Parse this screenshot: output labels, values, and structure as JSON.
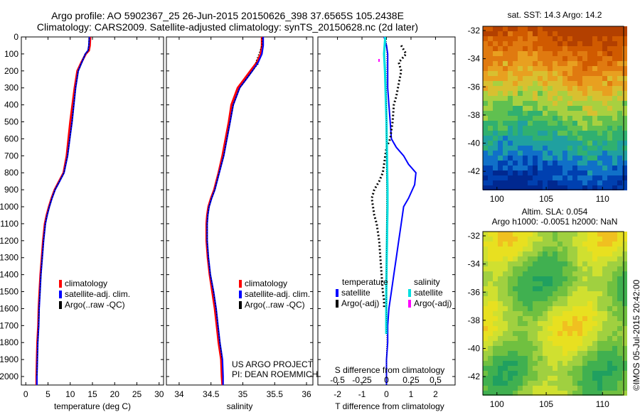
{
  "title": {
    "line1": "Argo profile: AO 5902367_25 26-Jun-2015 20150626_398 37.6565S 105.2438E",
    "line2": "Climatology: CARS2009. Satellite-adjusted climatology: synTS_20150628.nc (2d later)"
  },
  "colors": {
    "climatology": "#ff0000",
    "satellite": "#0000ff",
    "argo": "#000000",
    "sal_satellite": "#00e0e0",
    "sal_argo": "#ff00ff"
  },
  "panels": {
    "temperature": {
      "xlabel": "temperature (deg C)",
      "xticks": [
        "0",
        "5",
        "10",
        "15",
        "20",
        "25",
        "30"
      ],
      "legend": [
        "climatology",
        "satellite-adj. clim.",
        "Argo(..raw -QC)"
      ]
    },
    "salinity": {
      "xlabel": "salinity",
      "xticks": [
        "34",
        "34.5",
        "35",
        "35.5",
        "36"
      ],
      "legend": [
        "climatology",
        "satellite-adj. clim.",
        "Argo(..raw -QC)"
      ],
      "note1": "US ARGO PROJECT",
      "note2": "PI: DEAN ROEMMICH"
    },
    "difference": {
      "xlabel": "T difference from climatology",
      "xticks": [
        "-2",
        "-1",
        "0",
        "1",
        "2"
      ],
      "top_label": "S difference from climatology",
      "top_ticks": [
        "-0.5",
        "-0.25",
        "0",
        "0.25",
        "0.5"
      ],
      "legend_t_head": "temperature",
      "legend_s_head": "salinity",
      "legend_t": [
        "satellite",
        "Argo(-adj)"
      ],
      "legend_s": [
        "satellite",
        "Argo(-adj)"
      ]
    }
  },
  "yticks": [
    "0",
    "100",
    "200",
    "300",
    "400",
    "500",
    "600",
    "700",
    "800",
    "900",
    "1000",
    "1100",
    "1200",
    "1300",
    "1400",
    "1500",
    "1600",
    "1700",
    "1800",
    "1900",
    "2000"
  ],
  "maps": {
    "sst_title": "sat. SST: 14.3  Argo: 14.2",
    "sla_title1": "Altim. SLA: 0.054",
    "sla_title2": "Argo h1000: -0.0051  h2000: NaN",
    "lat_ticks": [
      "-32",
      "-34",
      "-36",
      "-38",
      "-40",
      "-42"
    ],
    "lon_ticks": [
      "100",
      "105",
      "110"
    ]
  },
  "stamp": "©IMOS 05-Jul-2015 20:42:00",
  "chart_data": [
    {
      "type": "line",
      "xlabel": "temperature (deg C)",
      "xlim": [
        -1,
        31
      ],
      "ylim": [
        2050,
        0
      ],
      "series": [
        {
          "name": "climatology",
          "x": [
            14.5,
            14.4,
            14.2,
            13.5,
            12.5,
            11.6,
            11.0,
            10.5,
            10.0,
            9.6,
            9.2,
            8.5,
            7.5,
            6.5,
            5.8,
            5.2,
            4.7,
            4.3,
            3.9,
            3.6,
            3.3,
            3.1,
            2.9,
            2.8,
            2.6,
            2.5,
            2.4,
            2.4
          ],
          "depth": [
            0,
            50,
            80,
            100,
            150,
            200,
            300,
            400,
            500,
            600,
            700,
            800,
            850,
            900,
            950,
            1000,
            1050,
            1100,
            1200,
            1300,
            1400,
            1500,
            1600,
            1700,
            1800,
            1900,
            2000,
            2050
          ]
        },
        {
          "name": "satellite-adj. clim.",
          "x": [
            14.3,
            14.2,
            14.0,
            13.4,
            12.6,
            11.8,
            11.2,
            10.8,
            10.4,
            9.9,
            9.4,
            8.6,
            7.6,
            6.6,
            5.9,
            5.3,
            4.8,
            4.4,
            4.0,
            3.7,
            3.4,
            3.2,
            3.0,
            2.9,
            2.7,
            2.6,
            2.5,
            2.5
          ],
          "depth": [
            0,
            50,
            80,
            100,
            150,
            200,
            300,
            400,
            500,
            600,
            700,
            800,
            850,
            900,
            950,
            1000,
            1050,
            1100,
            1200,
            1300,
            1400,
            1500,
            1600,
            1700,
            1800,
            1900,
            2000,
            2050
          ]
        },
        {
          "name": "Argo(..raw -QC)",
          "x": [
            14.2,
            14.2,
            14.1,
            13.4,
            12.6,
            11.8,
            11.2,
            10.8,
            10.4,
            9.9,
            9.4,
            8.6,
            7.6,
            6.6,
            5.9,
            5.3,
            4.8,
            4.4,
            4.0,
            3.7,
            3.4,
            3.2,
            3.0,
            2.9,
            2.7,
            2.6,
            2.5
          ],
          "depth": [
            5,
            50,
            80,
            100,
            150,
            200,
            300,
            400,
            500,
            600,
            700,
            800,
            850,
            900,
            950,
            1000,
            1050,
            1100,
            1200,
            1300,
            1400,
            1500,
            1600,
            1700,
            1800,
            1900,
            2000
          ]
        }
      ]
    },
    {
      "type": "line",
      "xlabel": "salinity",
      "xlim": [
        33.8,
        36.1
      ],
      "ylim": [
        2050,
        0
      ],
      "series": [
        {
          "name": "climatology",
          "x": [
            35.3,
            35.3,
            35.28,
            35.22,
            35.12,
            35.02,
            34.92,
            34.82,
            34.78,
            34.73,
            34.68,
            34.62,
            34.55,
            34.5,
            34.46,
            34.44,
            34.43,
            34.43,
            34.45,
            34.48,
            34.52,
            34.56,
            34.59,
            34.62,
            34.64,
            34.66,
            34.67,
            34.68
          ],
          "depth": [
            0,
            50,
            100,
            150,
            200,
            250,
            300,
            400,
            500,
            600,
            700,
            800,
            900,
            950,
            1000,
            1050,
            1100,
            1200,
            1300,
            1400,
            1500,
            1600,
            1700,
            1800,
            1850,
            1900,
            2000,
            2050
          ]
        },
        {
          "name": "satellite-adj. clim.",
          "x": [
            35.32,
            35.32,
            35.3,
            35.24,
            35.15,
            35.05,
            34.95,
            34.85,
            34.8,
            34.75,
            34.7,
            34.63,
            34.56,
            34.51,
            34.47,
            34.45,
            34.44,
            34.44,
            34.46,
            34.49,
            34.54,
            34.58,
            34.61,
            34.64,
            34.66,
            34.68,
            34.69,
            34.69
          ],
          "depth": [
            0,
            50,
            100,
            150,
            200,
            250,
            300,
            400,
            500,
            600,
            700,
            800,
            900,
            950,
            1000,
            1050,
            1100,
            1200,
            1300,
            1400,
            1500,
            1600,
            1700,
            1800,
            1850,
            1900,
            2000,
            2050
          ]
        },
        {
          "name": "Argo(..raw -QC)",
          "x": [
            35.3,
            35.3,
            35.2,
            35.24,
            35.15,
            35.05,
            34.95,
            34.85,
            34.8,
            34.75,
            34.7,
            34.63,
            34.56,
            34.51,
            34.47,
            34.45,
            34.44,
            34.44,
            34.46,
            34.49,
            34.54,
            34.58,
            34.61,
            34.64,
            34.66,
            34.67
          ],
          "depth": [
            5,
            50,
            150,
            160,
            200,
            250,
            300,
            400,
            500,
            600,
            700,
            800,
            900,
            950,
            1000,
            1050,
            1100,
            1200,
            1300,
            1400,
            1500,
            1600,
            1700,
            1800,
            1850,
            1900
          ]
        }
      ]
    },
    {
      "type": "line",
      "xlabel": "T difference from climatology",
      "xlim": [
        -2.8,
        2.8
      ],
      "ylim": [
        2050,
        0
      ],
      "series": [
        {
          "name": "temperature satellite",
          "x": [
            -0.1,
            0.0,
            0.05,
            0.05,
            0.05,
            0.1,
            0.15,
            0.2,
            0.4,
            0.7,
            0.9,
            1.2,
            1.15,
            0.9,
            0.7,
            0.6,
            0.5,
            0.4,
            0.3,
            0.2,
            0.1,
            0.05,
            0.05,
            0.0,
            0.0,
            0.0,
            0.0
          ],
          "depth": [
            0,
            50,
            100,
            200,
            300,
            400,
            500,
            600,
            650,
            700,
            750,
            800,
            870,
            950,
            1000,
            1100,
            1200,
            1300,
            1400,
            1500,
            1600,
            1700,
            1800,
            1900,
            2000,
            2050,
            2050
          ]
        },
        {
          "name": "temperature Argo(-adj)",
          "x": [
            0.6,
            0.8,
            0.5,
            0.6,
            0.4,
            0.3,
            0.25,
            0.15,
            0.0,
            -0.05,
            -0.1,
            -0.15,
            -0.3,
            -0.5,
            -0.6,
            -0.5,
            -0.4,
            -0.3,
            -0.25,
            -0.2,
            -0.15,
            -0.1,
            -0.1
          ],
          "depth": [
            50,
            100,
            150,
            200,
            350,
            400,
            500,
            600,
            650,
            700,
            750,
            800,
            850,
            900,
            950,
            1050,
            1100,
            1200,
            1300,
            1400,
            1500,
            1550,
            1600
          ]
        },
        {
          "name": "salinity satellite",
          "x": [
            -0.05,
            -0.1,
            -0.06,
            -0.04,
            -0.02,
            0.0,
            0.01,
            0.02,
            0.03,
            0.04,
            0.04,
            0.03,
            0.02,
            0.01,
            0.0,
            -0.01,
            -0.01,
            -0.01,
            -0.01
          ],
          "depth": [
            0,
            100,
            200,
            300,
            400,
            500,
            600,
            700,
            800,
            900,
            1000,
            1100,
            1200,
            1300,
            1400,
            1500,
            1600,
            1700,
            1750
          ]
        }
      ]
    }
  ]
}
